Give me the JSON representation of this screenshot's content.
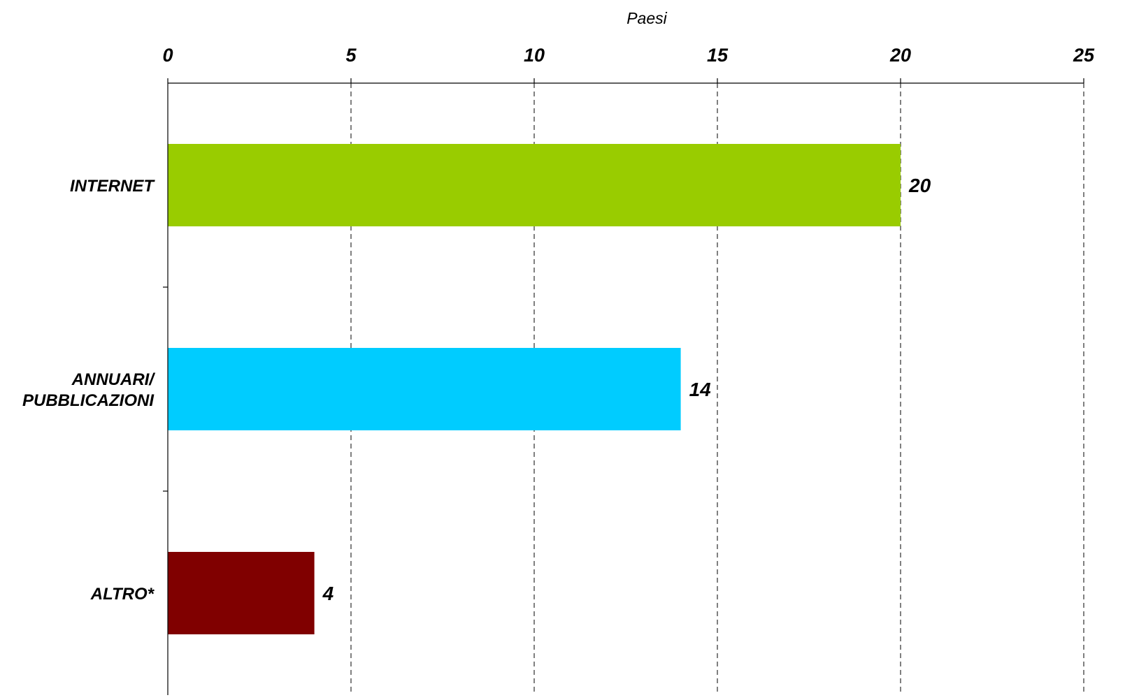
{
  "chart_data": {
    "type": "bar",
    "orientation": "horizontal",
    "xlabel": "Paesi",
    "xlim": [
      0,
      25
    ],
    "xticks": [
      0,
      5,
      10,
      15,
      20,
      25
    ],
    "xtick_labels": [
      "0",
      "5",
      "10",
      "15",
      "20",
      "25"
    ],
    "x_axis_position": "top",
    "grid": "vertical dashed",
    "categories": [
      [
        "INTERNET"
      ],
      [
        "ANNUARI/",
        "PUBBLICAZIONI"
      ],
      [
        "ALTRO*"
      ]
    ],
    "values": [
      20,
      14,
      4
    ],
    "value_labels": [
      "20",
      "14",
      "4"
    ],
    "colors": [
      "#99CC00",
      "#00CCFF",
      "#800000"
    ]
  }
}
